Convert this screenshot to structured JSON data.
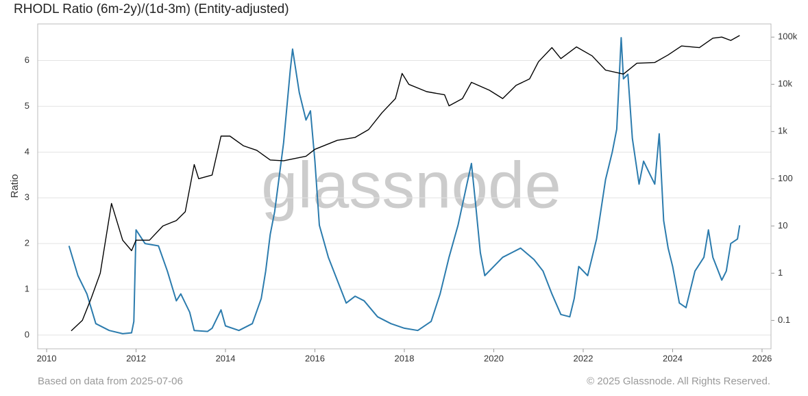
{
  "chart_data": {
    "type": "line",
    "title": "RHODL Ratio (6m-2y)/(1d-3m) (Entity-adjusted)",
    "y_label": "Ratio",
    "watermark": "glassnode",
    "footer_left": "Based on data from 2025-07-06",
    "footer_right": "© 2025 Glassnode. All Rights Reserved.",
    "xlim": [
      2009.8,
      2026.2
    ],
    "xticks": [
      2010,
      2012,
      2014,
      2016,
      2018,
      2020,
      2022,
      2024,
      2026
    ],
    "ylim": [
      -0.3,
      6.8
    ],
    "yticks": [
      0,
      1,
      2,
      3,
      4,
      5,
      6
    ],
    "y2lim": [
      0.025,
      190000
    ],
    "y2log": true,
    "y2ticks": [
      0.1,
      1,
      10,
      100,
      {
        "value": 1000,
        "label": "1k"
      },
      {
        "value": 10000,
        "label": "10k"
      },
      {
        "value": 100000,
        "label": "100k"
      }
    ],
    "grid": true,
    "series": [
      {
        "color": "#2b7bad",
        "axis": "y",
        "x": [
          2010.5,
          2010.7,
          2010.9,
          2011.1,
          2011.4,
          2011.7,
          2011.9,
          2011.95,
          2012.0,
          2012.2,
          2012.5,
          2012.7,
          2012.9,
          2013.0,
          2013.2,
          2013.3,
          2013.6,
          2013.7,
          2013.9,
          2014.0,
          2014.3,
          2014.6,
          2014.8,
          2014.9,
          2015.0,
          2015.1,
          2015.3,
          2015.45,
          2015.5,
          2015.65,
          2015.8,
          2015.9,
          2016.0,
          2016.1,
          2016.3,
          2016.5,
          2016.7,
          2016.9,
          2017.1,
          2017.4,
          2017.7,
          2018.0,
          2018.3,
          2018.6,
          2018.8,
          2019.0,
          2019.2,
          2019.4,
          2019.5,
          2019.6,
          2019.7,
          2019.8,
          2020.0,
          2020.2,
          2020.4,
          2020.6,
          2020.9,
          2021.1,
          2021.3,
          2021.5,
          2021.7,
          2021.8,
          2021.9,
          2022.1,
          2022.3,
          2022.5,
          2022.65,
          2022.75,
          2022.85,
          2022.9,
          2023.0,
          2023.1,
          2023.25,
          2023.35,
          2023.5,
          2023.6,
          2023.7,
          2023.8,
          2023.9,
          2024.0,
          2024.15,
          2024.3,
          2024.5,
          2024.7,
          2024.8,
          2024.9,
          2025.1,
          2025.2,
          2025.3,
          2025.45,
          2025.5
        ],
        "values": [
          1.95,
          1.3,
          0.9,
          0.25,
          0.1,
          0.03,
          0.05,
          0.3,
          2.3,
          2.0,
          1.95,
          1.4,
          0.75,
          0.9,
          0.5,
          0.1,
          0.08,
          0.15,
          0.55,
          0.2,
          0.1,
          0.25,
          0.8,
          1.4,
          2.2,
          2.7,
          4.2,
          5.8,
          6.25,
          5.3,
          4.7,
          4.9,
          3.8,
          2.4,
          1.7,
          1.2,
          0.7,
          0.85,
          0.75,
          0.4,
          0.25,
          0.15,
          0.1,
          0.3,
          0.9,
          1.7,
          2.4,
          3.3,
          3.75,
          2.8,
          1.8,
          1.3,
          1.5,
          1.7,
          1.8,
          1.9,
          1.65,
          1.4,
          0.9,
          0.45,
          0.4,
          0.8,
          1.5,
          1.3,
          2.1,
          3.4,
          4.0,
          4.5,
          6.5,
          5.6,
          5.7,
          4.3,
          3.3,
          3.8,
          3.5,
          3.3,
          4.4,
          2.5,
          1.9,
          1.5,
          0.7,
          0.6,
          1.4,
          1.7,
          2.3,
          1.7,
          1.2,
          1.4,
          2.0,
          2.1,
          2.4
        ]
      },
      {
        "color": "#000000",
        "axis": "y2",
        "x": [
          2010.55,
          2010.8,
          2011.0,
          2011.2,
          2011.45,
          2011.7,
          2011.9,
          2012.0,
          2012.3,
          2012.6,
          2012.9,
          2013.1,
          2013.3,
          2013.4,
          2013.7,
          2013.9,
          2014.1,
          2014.4,
          2014.7,
          2015.0,
          2015.3,
          2015.8,
          2016.0,
          2016.5,
          2016.9,
          2017.2,
          2017.5,
          2017.8,
          2017.95,
          2018.1,
          2018.5,
          2018.9,
          2019.0,
          2019.3,
          2019.5,
          2019.9,
          2020.2,
          2020.5,
          2020.8,
          2021.0,
          2021.3,
          2021.5,
          2021.85,
          2022.2,
          2022.5,
          2022.9,
          2023.2,
          2023.6,
          2023.9,
          2024.2,
          2024.6,
          2024.9,
          2025.1,
          2025.3,
          2025.5
        ],
        "values": [
          0.06,
          0.1,
          0.3,
          1,
          30,
          5,
          3,
          5,
          5,
          10,
          13,
          20,
          200,
          100,
          120,
          800,
          800,
          500,
          400,
          250,
          240,
          300,
          420,
          650,
          750,
          1100,
          2500,
          5000,
          17000,
          10000,
          7000,
          6000,
          3500,
          5000,
          11000,
          7500,
          5000,
          9500,
          13000,
          30000,
          60000,
          35000,
          62000,
          40000,
          20000,
          16500,
          28000,
          29000,
          42000,
          65000,
          60000,
          95000,
          100000,
          85000,
          108000
        ]
      }
    ]
  }
}
